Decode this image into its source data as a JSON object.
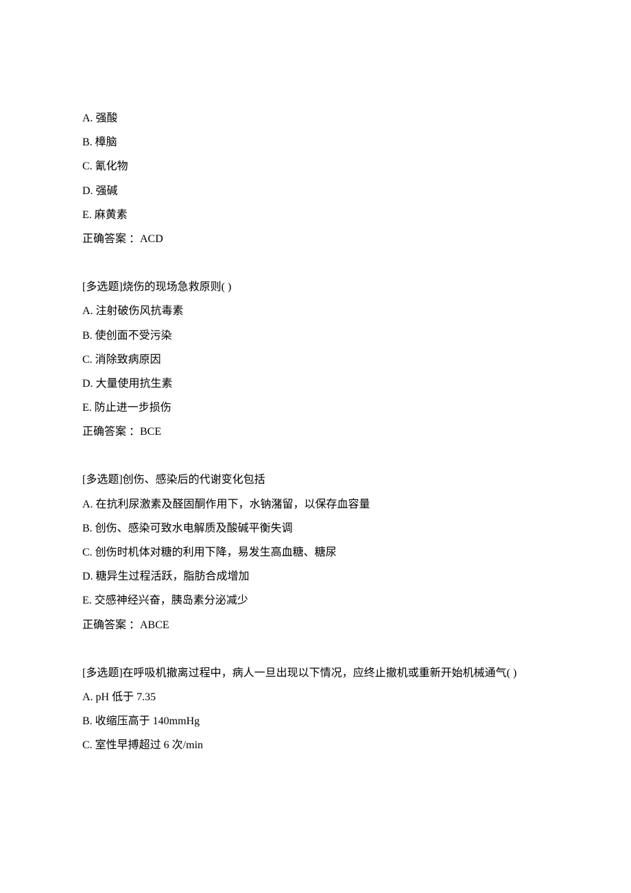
{
  "content": {
    "text_color": "#000000",
    "background_color": "#ffffff",
    "font_size": 16,
    "line_height": 2.2
  },
  "questions": [
    {
      "stem": "",
      "options": [
        "A.  强酸",
        "B.  樟脑",
        "C.  氰化物",
        "D.  强碱",
        "E.  麻黄素"
      ],
      "answer": "正确答案 ：ACD"
    },
    {
      "stem": "[多选题]烧伤的现场急救原则( )",
      "options": [
        "A.  注射破伤风抗毒素",
        "B.  使创面不受污染",
        "C.  消除致病原因",
        "D.  大量使用抗生素",
        "E.  防止进一步损伤"
      ],
      "answer": "正确答案 ：BCE"
    },
    {
      "stem": "[多选题]创伤、感染后的代谢变化包括",
      "options": [
        "A.  在抗利尿激素及醛固酮作用下，水钠潴留，以保存血容量",
        "B.  创伤、感染可致水电解质及酸碱平衡失调",
        "C.  创伤时机体对糖的利用下降，易发生高血糖、糖尿",
        "D.  糖异生过程活跃，脂肪合成增加",
        "E.  交感神经兴奋，胰岛素分泌减少"
      ],
      "answer": "正确答案 ：ABCE"
    },
    {
      "stem": "[多选题]在呼吸机撤离过程中，病人一旦出现以下情况，应终止撤机或重新开始机械通气( )",
      "options": [
        "A.  pH 低于 7.35",
        "B.  收缩压高于 140mmHg",
        "C.  室性早搏超过 6 次/min"
      ],
      "answer": ""
    }
  ]
}
